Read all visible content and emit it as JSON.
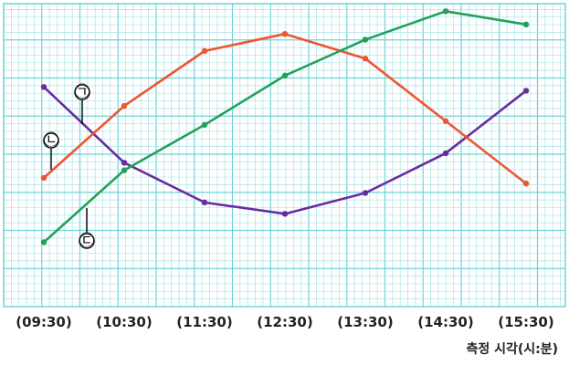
{
  "chart_data": {
    "type": "line",
    "xlabel": "측정 시각(시:분)",
    "ylabel": "",
    "categories": [
      "(09:30)",
      "(10:30)",
      "(11:30)",
      "(12:30)",
      "(13:30)",
      "(14:30)",
      "(15:30)"
    ],
    "ylim": [
      0,
      16
    ],
    "grid": true,
    "series": [
      {
        "name": "㉠",
        "color": "#6a2ba0",
        "values": [
          11.6,
          7.6,
          5.5,
          4.9,
          6.0,
          8.1,
          11.4
        ]
      },
      {
        "name": "㉡",
        "color": "#ee5533",
        "values": [
          6.8,
          10.6,
          13.5,
          14.4,
          13.1,
          9.8,
          6.5
        ]
      },
      {
        "name": "㉢",
        "color": "#22a05a",
        "values": [
          3.4,
          7.2,
          9.6,
          12.2,
          14.1,
          15.6,
          14.9
        ]
      }
    ]
  },
  "colors": {
    "grid": "#6fd3d8",
    "grid_minor": "#a9e4e7",
    "background": "#ffffff"
  }
}
